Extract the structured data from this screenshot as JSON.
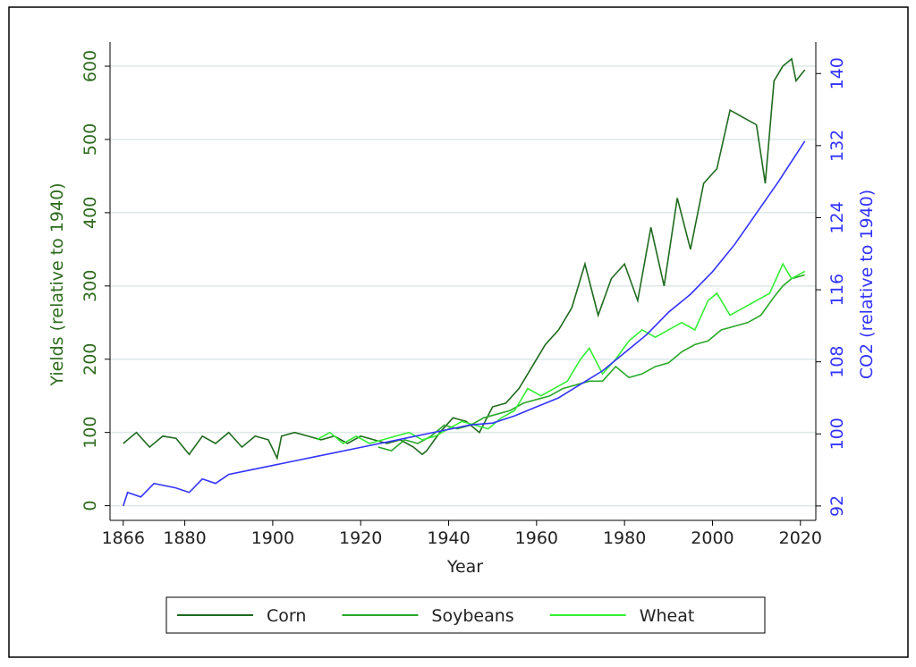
{
  "chart_data": {
    "type": "line",
    "xlabel": "Year",
    "ylabel": "Yields (relative to 1940)",
    "y2label": "CO2 (relative to 1940)",
    "xlim": [
      1863,
      2023.5
    ],
    "ylim": [
      -20,
      633
    ],
    "y2lim": [
      90.4,
      143.5
    ],
    "xticks": [
      1866,
      1880,
      1900,
      1920,
      1940,
      1960,
      1980,
      2000,
      2020
    ],
    "yticks": [
      0,
      100,
      200,
      300,
      400,
      500,
      600
    ],
    "y2ticks": [
      92,
      100,
      108,
      116,
      124,
      132,
      140
    ],
    "grid": true,
    "legend": "bottom",
    "series": [
      {
        "name": "Corn",
        "color": "#1f6b1f",
        "x": [
          1866,
          1869,
          1872,
          1875,
          1878,
          1881,
          1884,
          1887,
          1890,
          1893,
          1896,
          1899,
          1901,
          1902,
          1905,
          1908,
          1911,
          1914,
          1917,
          1920,
          1923,
          1926,
          1929,
          1932,
          1934,
          1935,
          1938,
          1941,
          1944,
          1947,
          1950,
          1953,
          1956,
          1959,
          1962,
          1965,
          1968,
          1971,
          1974,
          1977,
          1980,
          1983,
          1986,
          1989,
          1992,
          1995,
          1998,
          2001,
          2004,
          2007,
          2010,
          2012,
          2014,
          2016,
          2018,
          2019,
          2021
        ],
        "values": [
          85,
          100,
          80,
          95,
          92,
          70,
          95,
          85,
          100,
          80,
          95,
          90,
          65,
          95,
          100,
          95,
          90,
          95,
          85,
          95,
          90,
          85,
          90,
          80,
          70,
          75,
          100,
          120,
          115,
          100,
          135,
          140,
          160,
          190,
          220,
          240,
          270,
          330,
          260,
          310,
          330,
          280,
          380,
          300,
          420,
          350,
          440,
          460,
          540,
          530,
          520,
          440,
          580,
          600,
          610,
          580,
          595
        ]
      },
      {
        "name": "Soybeans",
        "color": "#2aa82a",
        "x": [
          1924,
          1927,
          1930,
          1933,
          1936,
          1939,
          1942,
          1945,
          1948,
          1951,
          1954,
          1957,
          1960,
          1963,
          1966,
          1969,
          1972,
          1975,
          1978,
          1981,
          1984,
          1987,
          1990,
          1993,
          1996,
          1999,
          2002,
          2005,
          2008,
          2011,
          2014,
          2016,
          2018,
          2021
        ],
        "values": [
          80,
          75,
          90,
          85,
          95,
          110,
          105,
          110,
          120,
          125,
          130,
          140,
          145,
          150,
          160,
          165,
          170,
          170,
          190,
          175,
          180,
          190,
          195,
          210,
          220,
          225,
          240,
          245,
          250,
          260,
          285,
          300,
          310,
          315
        ]
      },
      {
        "name": "Wheat",
        "color": "#33ee33",
        "x": [
          1910,
          1913,
          1916,
          1919,
          1922,
          1925,
          1928,
          1931,
          1934,
          1937,
          1940,
          1943,
          1946,
          1949,
          1952,
          1955,
          1958,
          1961,
          1964,
          1967,
          1970,
          1972,
          1975,
          1978,
          1981,
          1984,
          1987,
          1990,
          1993,
          1996,
          1999,
          2001,
          2004,
          2007,
          2010,
          2013,
          2016,
          2018,
          2021
        ],
        "values": [
          90,
          100,
          85,
          95,
          85,
          90,
          95,
          100,
          90,
          95,
          105,
          115,
          110,
          105,
          120,
          130,
          160,
          150,
          160,
          170,
          200,
          215,
          180,
          200,
          225,
          240,
          230,
          240,
          250,
          240,
          280,
          290,
          260,
          270,
          280,
          290,
          330,
          310,
          320
        ]
      },
      {
        "color": "#3333ff",
        "axis": "y2",
        "x": [
          1866,
          1867,
          1870,
          1873,
          1878,
          1881,
          1884,
          1887,
          1890,
          1895,
          1900,
          1905,
          1910,
          1915,
          1920,
          1925,
          1930,
          1935,
          1940,
          1945,
          1950,
          1955,
          1960,
          1965,
          1970,
          1975,
          1980,
          1985,
          1990,
          1995,
          2000,
          2005,
          2010,
          2015,
          2021
        ],
        "values": [
          92,
          93.5,
          93,
          94.5,
          94,
          93.5,
          95,
          94.5,
          95.5,
          96,
          96.5,
          97,
          97.5,
          98,
          98.5,
          99,
          99.5,
          100,
          100.5,
          101,
          101.2,
          102,
          103,
          104,
          105.5,
          107,
          109,
          111,
          113.5,
          115.5,
          118,
          121,
          124.5,
          128,
          132.5
        ]
      }
    ]
  }
}
